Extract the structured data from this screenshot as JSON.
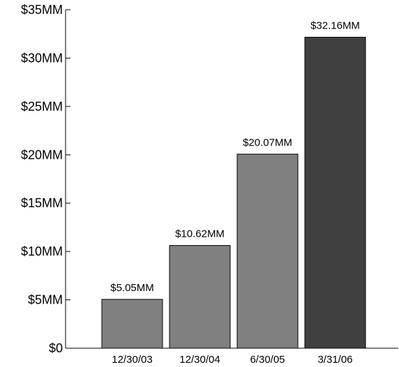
{
  "chart_data": {
    "type": "bar",
    "categories": [
      "12/30/03",
      "12/30/04",
      "6/30/05",
      "3/31/06"
    ],
    "values": [
      5.05,
      10.62,
      20.07,
      32.16
    ],
    "data_labels": [
      "$5.05MM",
      "$10.62MM",
      "$20.07MM",
      "$32.16MM"
    ],
    "y_ticks": [
      0,
      5,
      10,
      15,
      20,
      25,
      30,
      35
    ],
    "y_tick_labels": [
      "$0",
      "$5MM",
      "$10MM",
      "$15MM",
      "$20MM",
      "$25MM",
      "$30MM",
      "$35MM"
    ],
    "ylim": [
      0,
      35
    ],
    "grid": false,
    "legend": "none",
    "colors": {
      "bar": "#808080",
      "bar_highlight": "#404040",
      "bar_stroke": "#000000",
      "axis": "#000000"
    },
    "highlight_index": 3
  }
}
